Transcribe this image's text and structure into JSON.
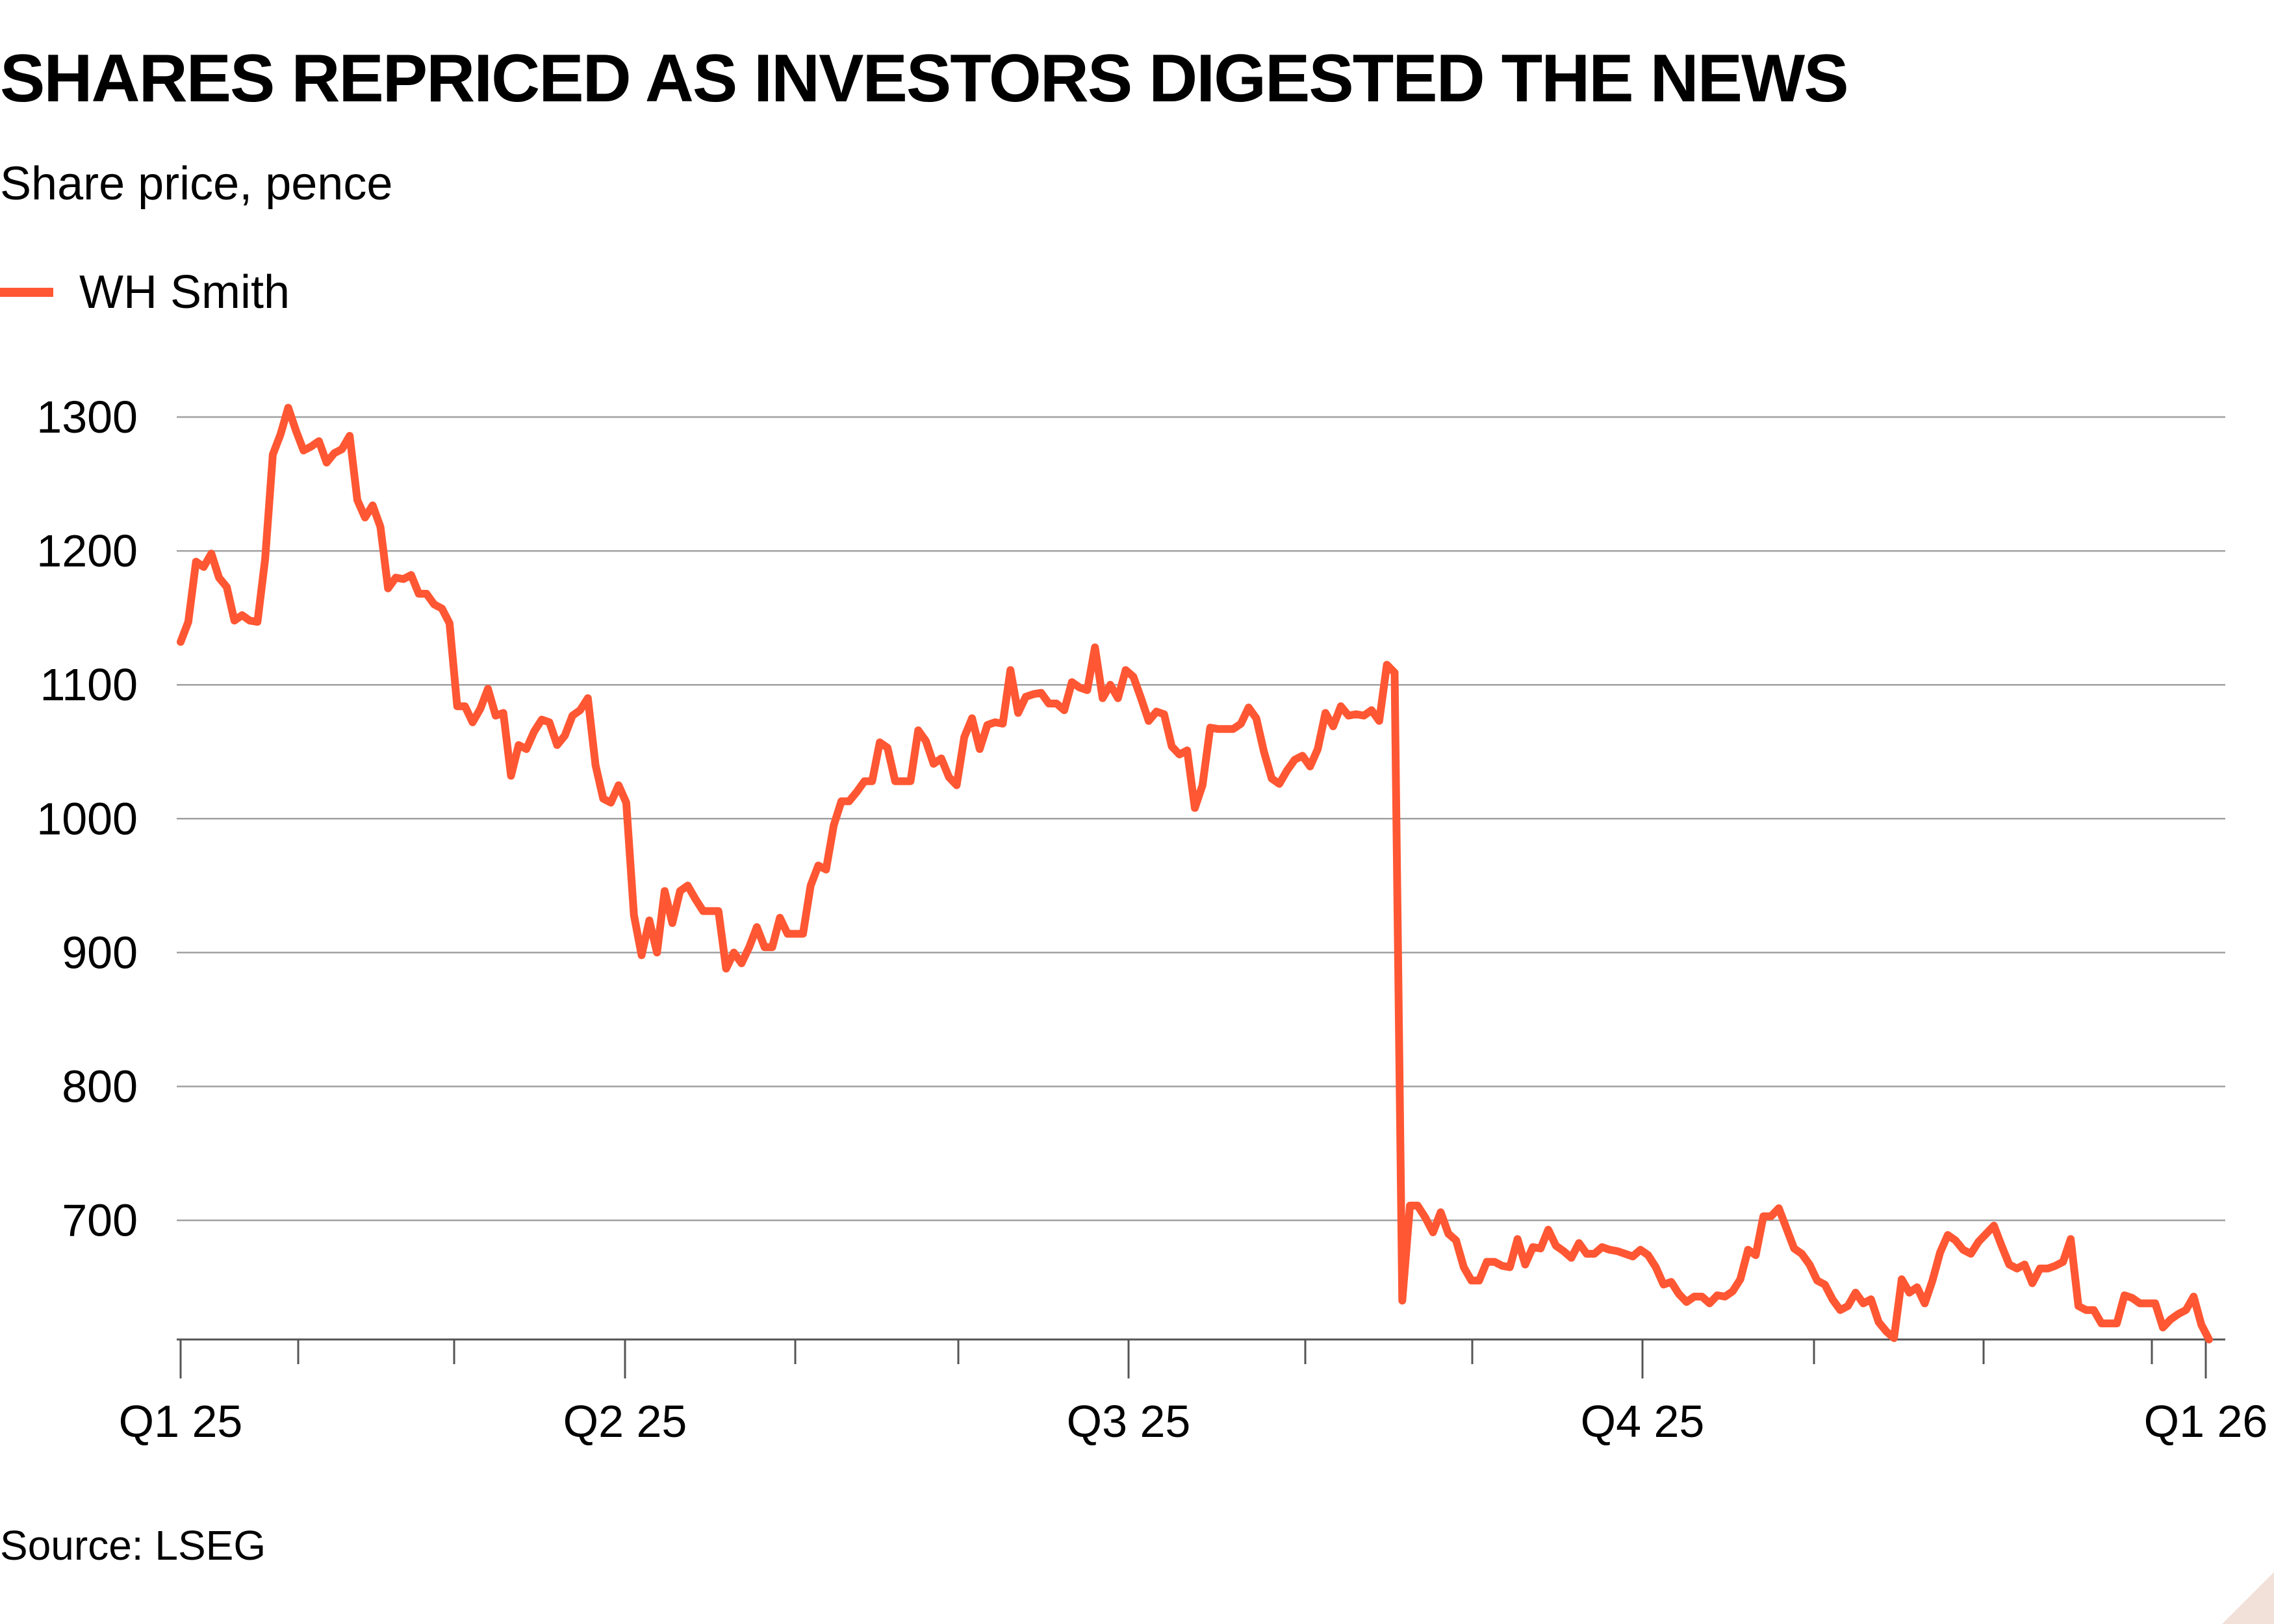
{
  "title": "SHARES REPRICED AS INVESTORS DIGESTED THE NEWS",
  "subtitle": "Share price, pence",
  "legend": {
    "label": "WH Smith",
    "color": "#ff5733"
  },
  "source": "Source: LSEG",
  "chart_data": {
    "type": "line",
    "title": "SHARES REPRICED AS INVESTORS DIGESTED THE NEWS",
    "subtitle": "Share price, pence",
    "xlabel": "",
    "ylabel": "",
    "ylim": [
      611,
      1300
    ],
    "yticks": [
      700,
      800,
      900,
      1000,
      1100,
      1200,
      1300
    ],
    "xticks": [
      "Q1 25",
      "Q2 25",
      "Q3 25",
      "Q4 25",
      "Q1 26"
    ],
    "grid": true,
    "legend_position": "top-left",
    "series": [
      {
        "name": "WH Smith",
        "color": "#ff5733",
        "values": [
          1132,
          1147,
          1192,
          1188,
          1198,
          1180,
          1173,
          1148,
          1152,
          1148,
          1147,
          1194,
          1272,
          1287,
          1307,
          1290,
          1275,
          1278,
          1282,
          1266,
          1273,
          1276,
          1286,
          1238,
          1225,
          1234,
          1218,
          1172,
          1180,
          1179,
          1182,
          1168,
          1168,
          1160,
          1157,
          1146,
          1084,
          1084,
          1072,
          1082,
          1097,
          1077,
          1079,
          1032,
          1055,
          1052,
          1065,
          1074,
          1072,
          1055,
          1062,
          1077,
          1081,
          1090,
          1040,
          1015,
          1012,
          1025,
          1012,
          928,
          898,
          924,
          900,
          946,
          922,
          946,
          950,
          940,
          931,
          931,
          931,
          888,
          900,
          892,
          904,
          919,
          904,
          904,
          926,
          914,
          914,
          914,
          950,
          965,
          962,
          995,
          1013,
          1013,
          1020,
          1028,
          1028,
          1057,
          1053,
          1028,
          1028,
          1028,
          1066,
          1058,
          1041,
          1045,
          1031,
          1025,
          1061,
          1075,
          1052,
          1070,
          1072,
          1071,
          1111,
          1079,
          1091,
          1093,
          1094,
          1086,
          1086,
          1081,
          1102,
          1098,
          1096,
          1128,
          1090,
          1100,
          1090,
          1111,
          1106,
          1090,
          1073,
          1080,
          1078,
          1054,
          1048,
          1051,
          1008,
          1025,
          1068,
          1067,
          1067,
          1067,
          1071,
          1083,
          1075,
          1050,
          1030,
          1026,
          1036,
          1044,
          1047,
          1039,
          1052,
          1079,
          1069,
          1084,
          1077,
          1078,
          1077,
          1081,
          1073,
          1115,
          1109,
          640,
          711,
          711,
          702,
          691,
          706,
          690,
          685,
          665,
          655,
          655,
          669,
          669,
          666,
          665,
          686,
          667,
          680,
          679,
          693,
          681,
          677,
          672,
          683,
          675,
          675,
          680,
          678,
          677,
          675,
          673,
          678,
          674,
          665,
          652,
          654,
          645,
          639,
          643,
          643,
          638,
          644,
          643,
          647,
          656,
          678,
          674,
          703,
          703,
          709,
          694,
          679,
          675,
          667,
          655,
          652,
          641,
          633,
          636,
          646,
          638,
          641,
          624,
          617,
          612,
          656,
          646,
          650,
          638,
          655,
          676,
          689,
          685,
          678,
          675,
          684,
          690,
          696,
          681,
          667,
          664,
          667,
          653,
          664,
          664,
          666,
          669,
          686,
          636,
          633,
          633,
          623,
          623,
          623,
          644,
          642,
          638,
          638,
          638,
          620,
          626,
          630,
          633,
          643,
          622,
          611
        ]
      }
    ]
  }
}
